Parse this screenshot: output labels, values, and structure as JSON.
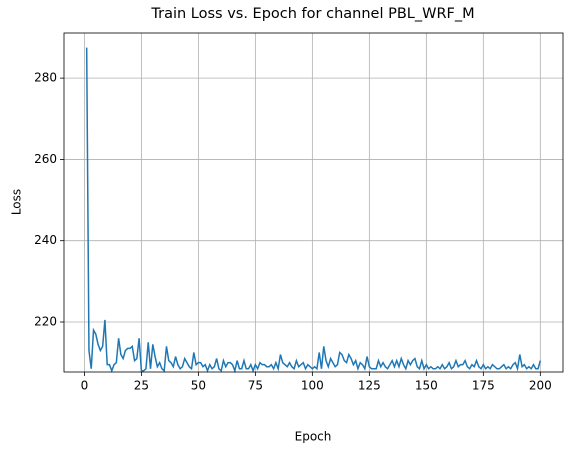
{
  "chart_data": {
    "type": "line",
    "title": "Train Loss vs. Epoch for channel PBL_WRF_M",
    "xlabel": "Epoch",
    "ylabel": "Loss",
    "x": [
      1,
      2,
      3,
      4,
      5,
      6,
      7,
      8,
      9,
      10,
      11,
      12,
      13,
      14,
      15,
      16,
      17,
      18,
      19,
      20,
      21,
      22,
      23,
      24,
      25,
      26,
      27,
      28,
      29,
      30,
      31,
      32,
      33,
      34,
      35,
      36,
      37,
      38,
      39,
      40,
      41,
      42,
      43,
      44,
      45,
      46,
      47,
      48,
      49,
      50,
      51,
      52,
      53,
      54,
      55,
      56,
      57,
      58,
      59,
      60,
      61,
      62,
      63,
      64,
      65,
      66,
      67,
      68,
      69,
      70,
      71,
      72,
      73,
      74,
      75,
      76,
      77,
      78,
      79,
      80,
      81,
      82,
      83,
      84,
      85,
      86,
      87,
      88,
      89,
      90,
      91,
      92,
      93,
      94,
      95,
      96,
      97,
      98,
      99,
      100,
      101,
      102,
      103,
      104,
      105,
      106,
      107,
      108,
      109,
      110,
      111,
      112,
      113,
      114,
      115,
      116,
      117,
      118,
      119,
      120,
      121,
      122,
      123,
      124,
      125,
      126,
      127,
      128,
      129,
      130,
      131,
      132,
      133,
      134,
      135,
      136,
      137,
      138,
      139,
      140,
      141,
      142,
      143,
      144,
      145,
      146,
      147,
      148,
      149,
      150,
      151,
      152,
      153,
      154,
      155,
      156,
      157,
      158,
      159,
      160,
      161,
      162,
      163,
      164,
      165,
      166,
      167,
      168,
      169,
      170,
      171,
      172,
      173,
      174,
      175,
      176,
      177,
      178,
      179,
      180,
      181,
      182,
      183,
      184,
      185,
      186,
      187,
      188,
      189,
      190,
      191,
      192,
      193,
      194,
      195,
      196,
      197,
      198,
      199,
      200
    ],
    "series": [
      {
        "name": "Train Loss",
        "color": "#1f77b4",
        "values": [
          287.5,
          213,
          208.5,
          218,
          217,
          214.5,
          213,
          214,
          220.5,
          209.5,
          209.5,
          208,
          209.5,
          210,
          216,
          212,
          211,
          213,
          213.5,
          213.5,
          214,
          210.5,
          211,
          216,
          208,
          208,
          208.5,
          215,
          208.5,
          214.5,
          211.5,
          209,
          210,
          208.5,
          208,
          214,
          210.5,
          210,
          209,
          211.5,
          209.5,
          208.5,
          209,
          211,
          210,
          209,
          208.5,
          212.5,
          209.5,
          210,
          210,
          209,
          209.5,
          208,
          209.5,
          208.5,
          209,
          211,
          208.5,
          208,
          210.5,
          209,
          210,
          210,
          209.5,
          208,
          210.5,
          208.5,
          208.5,
          210.5,
          208.5,
          208.5,
          209.5,
          208,
          209.5,
          208.5,
          210,
          209.5,
          209.5,
          209,
          209,
          209.5,
          208.5,
          210,
          208.5,
          212,
          210,
          209.5,
          209,
          210,
          209,
          208.5,
          210.5,
          209,
          209.5,
          210,
          208.5,
          209.5,
          209,
          208.5,
          209,
          208.5,
          212.5,
          208.5,
          214,
          210.5,
          209,
          211,
          210,
          209,
          209.5,
          212.5,
          212,
          210.5,
          210,
          212,
          211,
          209.5,
          210.5,
          208.5,
          210,
          209.5,
          208.5,
          211.5,
          209,
          208.5,
          208.5,
          208.5,
          210.5,
          209,
          210,
          209,
          208.5,
          209.5,
          210.5,
          209,
          210.5,
          209,
          211,
          209.5,
          208.5,
          210.5,
          209.5,
          210.5,
          211,
          209,
          208.5,
          210.5,
          208.5,
          209.5,
          208.5,
          209,
          208.5,
          208.5,
          209,
          208.5,
          209.5,
          208.5,
          209,
          210,
          208.5,
          209,
          210.5,
          209,
          209.5,
          209.5,
          210.5,
          209,
          208.5,
          209.5,
          209,
          210.5,
          209,
          208.5,
          209.5,
          208.5,
          209,
          208.5,
          209.5,
          209,
          208.5,
          208.5,
          209,
          209.5,
          208.5,
          209,
          208.5,
          209.5,
          210,
          208.5,
          212,
          209,
          209.5,
          208.5,
          209,
          208.5,
          209.5,
          208.5,
          208.5,
          210.5
        ]
      }
    ],
    "xlim": [
      -8.95,
      209.95
    ],
    "ylim": [
      207.7,
      291.1
    ],
    "xticks": [
      0,
      25,
      50,
      75,
      100,
      125,
      150,
      175,
      200
    ],
    "yticks": [
      220,
      240,
      260,
      280
    ],
    "grid": true
  }
}
